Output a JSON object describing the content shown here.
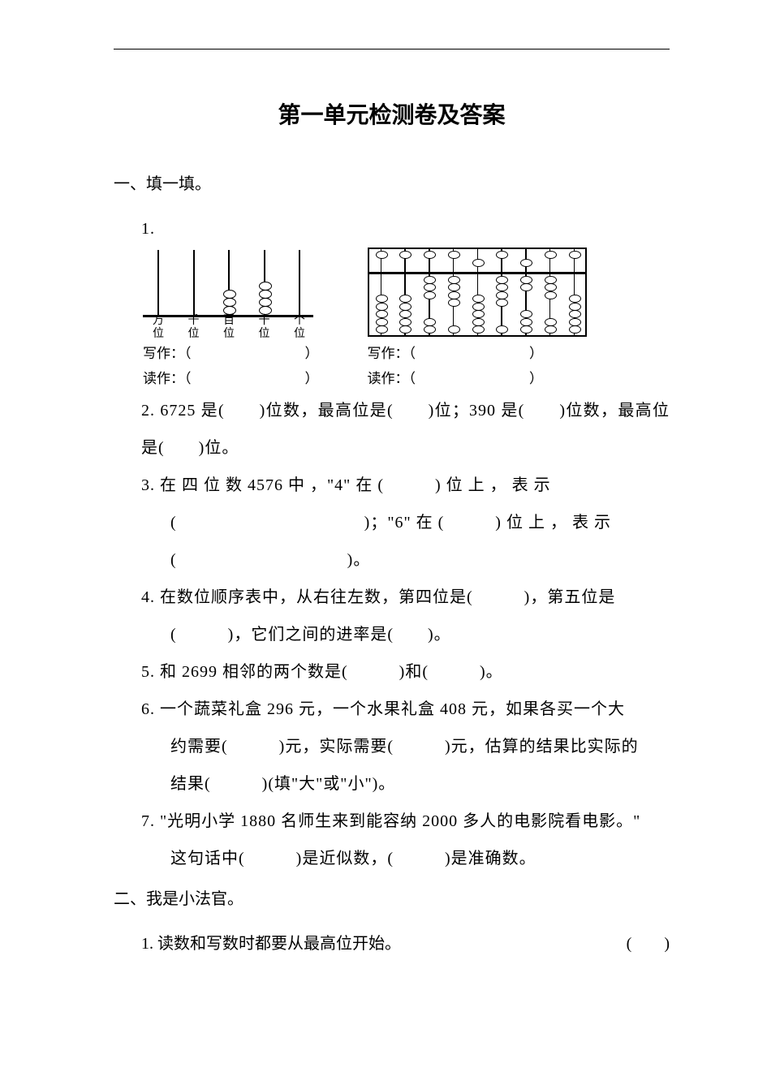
{
  "title": "第一单元检测卷及答案",
  "s1": {
    "head": "一、填一填。",
    "q1": {
      "num": "1.",
      "frame": {
        "rods": [
          {
            "label": "万位",
            "beads": 0
          },
          {
            "label": "千位",
            "beads": 0
          },
          {
            "label": "百位",
            "beads": 3
          },
          {
            "label": "十位",
            "beads": 4
          },
          {
            "label": "个位",
            "beads": 0
          }
        ]
      },
      "abacus": {
        "rods": [
          {
            "upper": 1,
            "upperDown": false,
            "lowerUp": 0,
            "lowerDown": 5
          },
          {
            "upper": 1,
            "upperDown": false,
            "lowerUp": 0,
            "lowerDown": 5
          },
          {
            "upper": 1,
            "upperDown": false,
            "lowerUp": 3,
            "lowerDown": 2
          },
          {
            "upper": 1,
            "upperDown": false,
            "lowerUp": 4,
            "lowerDown": 1
          },
          {
            "upper": 1,
            "upperDown": true,
            "lowerUp": 0,
            "lowerDown": 5
          },
          {
            "upper": 1,
            "upperDown": false,
            "lowerUp": 4,
            "lowerDown": 1
          },
          {
            "upper": 1,
            "upperDown": true,
            "lowerUp": 2,
            "lowerDown": 3
          },
          {
            "upper": 1,
            "upperDown": false,
            "lowerUp": 3,
            "lowerDown": 2
          },
          {
            "upper": 1,
            "upperDown": false,
            "lowerUp": 0,
            "lowerDown": 5
          }
        ]
      },
      "writeLabel": "写作：",
      "readLabel": "读作："
    },
    "q2": "2. 6725 是(　　)位数，最高位是(　　)位；390 是(　　)位数，最高位是(　　)位。",
    "q3a": "3. 在 四 位 数 4576 中 ，\"4\" 在 (　　　) 位 上 ， 表 示",
    "q3b": "(　　　　　　　　　　　)；\"6\" 在 (　　　) 位 上 ， 表 示",
    "q3c": "(　　　　　　　　　　)。",
    "q4a": "4. 在数位顺序表中，从右往左数，第四位是(　　　)，第五位是",
    "q4b": "(　　　)，它们之间的进率是(　　)。",
    "q5": "5. 和 2699 相邻的两个数是(　　　)和(　　　)。",
    "q6a": "6. 一个蔬菜礼盒 296 元，一个水果礼盒 408 元，如果各买一个大",
    "q6b": "约需要(　　　)元，实际需要(　　　)元，估算的结果比实际的",
    "q6c": "结果(　　　)(填\"大\"或\"小\")。",
    "q7a": "7. \"光明小学 1880 名师生来到能容纳 2000 多人的电影院看电影。\"",
    "q7b": "这句话中(　　　)是近似数，(　　　)是准确数。"
  },
  "s2": {
    "head": "二、我是小法官。",
    "q1": "1. 读数和写数时都要从最高位开始。",
    "paren": "(　　)"
  }
}
